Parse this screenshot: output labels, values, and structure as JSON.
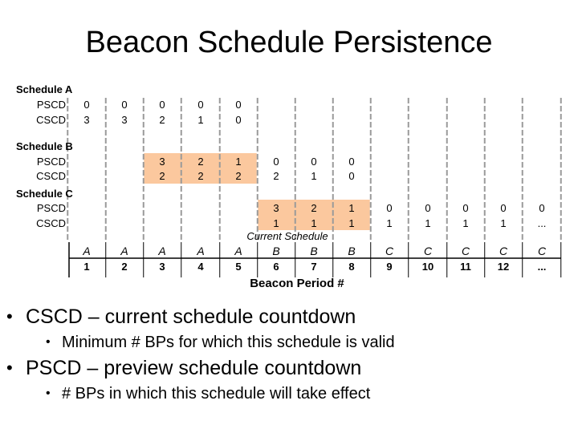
{
  "slide": {
    "title": "Beacon Schedule Persistence",
    "bullets": [
      {
        "text": "CSCD – current schedule countdown",
        "sub": "Minimum # BPs for which this schedule is valid"
      },
      {
        "text": "PSCD – preview schedule countdown",
        "sub": "# BPs in which this schedule will take effect"
      }
    ]
  },
  "figure": {
    "schedules": [
      {
        "name": "Schedule A",
        "rows": [
          {
            "label": "PSCD",
            "values": [
              "0",
              "0",
              "0",
              "0",
              "0"
            ]
          },
          {
            "label": "CSCD",
            "values": [
              "3",
              "3",
              "2",
              "1",
              "0"
            ]
          }
        ]
      },
      {
        "name": "Schedule B",
        "rows": [
          {
            "label": "PSCD",
            "values": [
              "3",
              "2",
              "1",
              "0",
              "0",
              "0"
            ]
          },
          {
            "label": "CSCD",
            "values": [
              "2",
              "2",
              "2",
              "2",
              "1",
              "0"
            ]
          }
        ]
      },
      {
        "name": "Schedule C",
        "rows": [
          {
            "label": "PSCD",
            "values": [
              "3",
              "2",
              "1",
              "0",
              "0",
              "0",
              "0",
              "0"
            ]
          },
          {
            "label": "CSCD",
            "values": [
              "1",
              "1",
              "1",
              "1",
              "1",
              "1",
              "1",
              "..."
            ]
          }
        ]
      }
    ],
    "highlight_color": "#fbc89e",
    "current_schedule_label": "Current Schedule",
    "current_schedule": [
      "A",
      "A",
      "A",
      "A",
      "A",
      "B",
      "B",
      "B",
      "C",
      "C",
      "C",
      "C",
      "C"
    ],
    "beacon_periods": [
      "1",
      "2",
      "3",
      "4",
      "5",
      "6",
      "7",
      "8",
      "9",
      "10",
      "11",
      "12",
      "..."
    ],
    "axis_label": "Beacon Period #"
  }
}
